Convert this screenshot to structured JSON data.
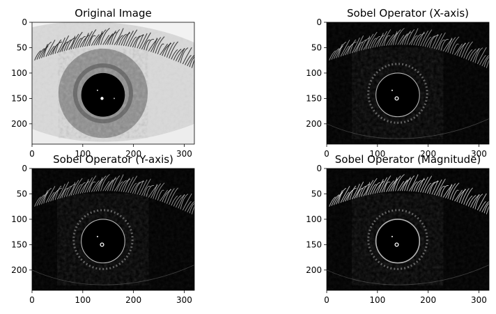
{
  "figure": {
    "colormap": "gray",
    "panels": [
      {
        "id": "original",
        "title": "Original Image",
        "kind": "grayscale-photo"
      },
      {
        "id": "sobel-x",
        "title": "Sobel Operator (X-axis)",
        "kind": "edge-map"
      },
      {
        "id": "sobel-y",
        "title": "Sobel Operator (Y-axis)",
        "kind": "edge-map"
      },
      {
        "id": "sobel-mag",
        "title": "Sobel Operator (Magnitude)",
        "kind": "edge-map"
      }
    ]
  },
  "chart_data": [
    {
      "type": "heatmap",
      "title": "Original Image",
      "xlim": [
        0,
        320
      ],
      "ylim": [
        240,
        0
      ],
      "xticks": [
        0,
        100,
        200,
        300
      ],
      "yticks": [
        0,
        50,
        100,
        150,
        200
      ],
      "grid": false,
      "content": "grayscale eye: light sclera, gray textured iris, black pupil with bright specular highlight, dark eyelashes along top"
    },
    {
      "type": "heatmap",
      "title": "Sobel Operator (X-axis)",
      "xlim": [
        0,
        320
      ],
      "ylim": [
        240,
        0
      ],
      "xticks": [
        0,
        100,
        200,
        300
      ],
      "yticks": [
        0,
        50,
        100,
        150,
        200
      ],
      "grid": false,
      "content": "horizontal-gradient edge map: black background, white eyelash and iris texture edges, thin pupil ring"
    },
    {
      "type": "heatmap",
      "title": "Sobel Operator (Y-axis)",
      "xlim": [
        0,
        320
      ],
      "ylim": [
        240,
        0
      ],
      "xticks": [
        0,
        100,
        200,
        300
      ],
      "yticks": [
        0,
        50,
        100,
        150,
        200
      ],
      "grid": false,
      "content": "vertical-gradient edge map: black background, white eyelash and iris texture edges, thin pupil ring"
    },
    {
      "type": "heatmap",
      "title": "Sobel Operator (Magnitude)",
      "xlim": [
        0,
        320
      ],
      "ylim": [
        240,
        0
      ],
      "xticks": [
        0,
        100,
        200,
        300
      ],
      "yticks": [
        0,
        50,
        100,
        150,
        200
      ],
      "grid": false,
      "content": "gradient magnitude edge map: combined edges, brighter pupil ring and eyelashes"
    }
  ]
}
